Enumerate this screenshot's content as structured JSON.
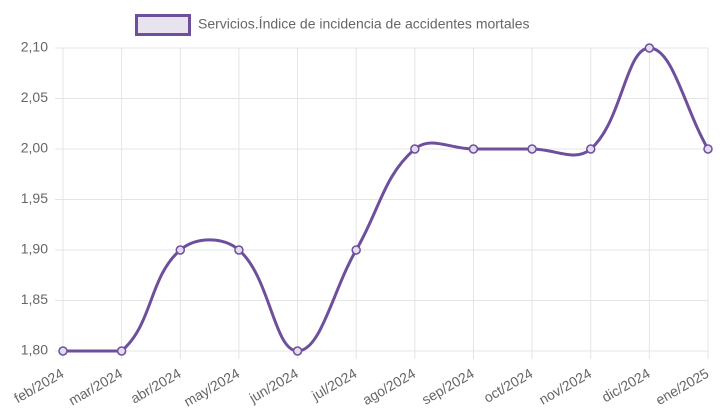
{
  "chart_data": {
    "type": "line",
    "categories": [
      "feb/2024",
      "mar/2024",
      "abr/2024",
      "may/2024",
      "jun/2024",
      "jul/2024",
      "ago/2024",
      "sep/2024",
      "oct/2024",
      "nov/2024",
      "dic/2024",
      "ene/2025"
    ],
    "series": [
      {
        "name": "Servicios.Índice de incidencia de accidentes mortales",
        "color": "#6d4f9c",
        "values": [
          1.8,
          1.8,
          1.9,
          1.9,
          1.8,
          1.9,
          2.0,
          2.0,
          2.0,
          2.0,
          2.1,
          2.0
        ]
      }
    ],
    "ylim": [
      1.8,
      2.1
    ],
    "yticks": [
      {
        "value": 1.8,
        "label": "1,80"
      },
      {
        "value": 1.85,
        "label": "1,85"
      },
      {
        "value": 1.9,
        "label": "1,90"
      },
      {
        "value": 1.95,
        "label": "1,95"
      },
      {
        "value": 2.0,
        "label": "2,00"
      },
      {
        "value": 2.05,
        "label": "2,05"
      },
      {
        "value": 2.1,
        "label": "2,10"
      }
    ],
    "grid": true,
    "legend": "top"
  }
}
